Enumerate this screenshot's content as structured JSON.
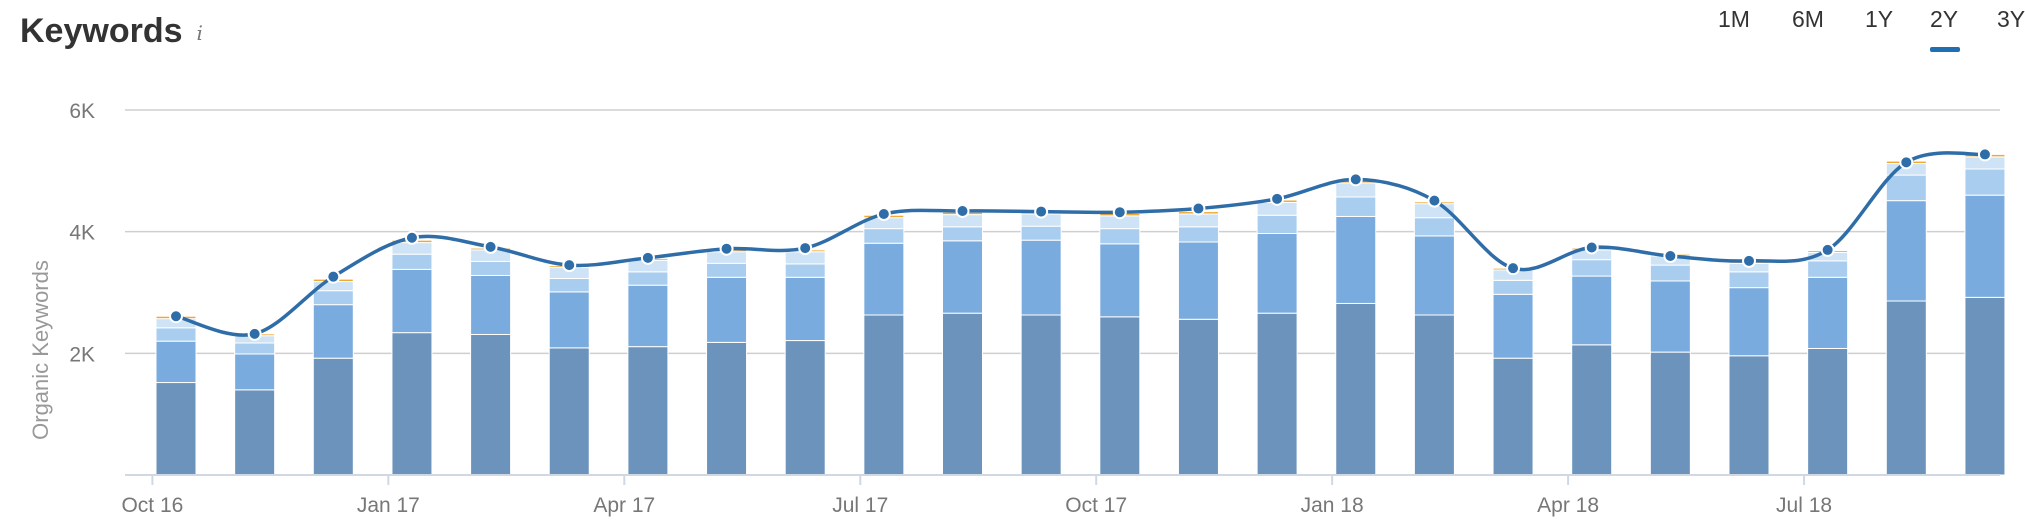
{
  "header": {
    "title": "Keywords",
    "info_icon_text": "i"
  },
  "range_selector": {
    "options": [
      "1M",
      "6M",
      "1Y",
      "2Y",
      "3Y"
    ],
    "selected": "2Y",
    "accent_color": "#1f6fb2"
  },
  "chart_data": {
    "type": "bar",
    "stacked": true,
    "ylabel": "Organic Keywords",
    "xlabel": "",
    "ylim": [
      0,
      6000
    ],
    "yticks": [
      {
        "value": 2000,
        "label": "2K"
      },
      {
        "value": 4000,
        "label": "4K"
      },
      {
        "value": 6000,
        "label": "6K"
      }
    ],
    "grid": true,
    "categories": [
      "Oct 16",
      "Nov 16",
      "Dec 16",
      "Jan 17",
      "Feb 17",
      "Mar 17",
      "Apr 17",
      "May 17",
      "Jun 17",
      "Jul 17",
      "Aug 17",
      "Sep 17",
      "Oct 17",
      "Nov 17",
      "Dec 17",
      "Jan 18",
      "Feb 18",
      "Mar 18",
      "Apr 18",
      "May 18",
      "Jun 18",
      "Jul 18",
      "Aug 18",
      "Sep 18"
    ],
    "xtick_labels": [
      {
        "index": 0,
        "label": "Oct 16"
      },
      {
        "index": 3,
        "label": "Jan 17"
      },
      {
        "index": 6,
        "label": "Apr 17"
      },
      {
        "index": 9,
        "label": "Jul 17"
      },
      {
        "index": 12,
        "label": "Oct 17"
      },
      {
        "index": 15,
        "label": "Jan 18"
      },
      {
        "index": 18,
        "label": "Apr 18"
      },
      {
        "index": 21,
        "label": "Jul 18"
      }
    ],
    "series": [
      {
        "color": "#6b93bb",
        "values": [
          1520,
          1400,
          1920,
          2340,
          2310,
          2090,
          2110,
          2180,
          2210,
          2630,
          2660,
          2630,
          2600,
          2560,
          2660,
          2820,
          2630,
          1920,
          2140,
          2020,
          1960,
          2080,
          2860,
          2920
        ]
      },
      {
        "color": "#7aabde",
        "values": [
          680,
          590,
          880,
          1040,
          970,
          920,
          1010,
          1070,
          1040,
          1180,
          1190,
          1230,
          1200,
          1270,
          1310,
          1430,
          1300,
          1050,
          1130,
          1170,
          1120,
          1170,
          1650,
          1680
        ]
      },
      {
        "color": "#a8cdef",
        "values": [
          220,
          180,
          230,
          250,
          230,
          220,
          220,
          230,
          220,
          240,
          230,
          230,
          250,
          250,
          300,
          320,
          300,
          230,
          270,
          260,
          260,
          270,
          420,
          430
        ]
      },
      {
        "color": "#cfe3f6",
        "values": [
          150,
          120,
          150,
          190,
          190,
          180,
          190,
          190,
          200,
          180,
          200,
          200,
          210,
          210,
          210,
          230,
          230,
          170,
          160,
          150,
          140,
          140,
          190,
          200
        ]
      },
      {
        "color": "#f0a830",
        "values": [
          40,
          30,
          40,
          40,
          30,
          30,
          30,
          30,
          30,
          40,
          40,
          40,
          40,
          40,
          40,
          40,
          30,
          30,
          30,
          30,
          30,
          30,
          40,
          40
        ]
      }
    ],
    "line": {
      "color": "#2f6da8",
      "values": [
        2610,
        2320,
        3260,
        3900,
        3750,
        3450,
        3570,
        3720,
        3730,
        4290,
        4340,
        4330,
        4320,
        4380,
        4540,
        4860,
        4510,
        3400,
        3740,
        3600,
        3520,
        3700,
        5140,
        5270
      ]
    }
  }
}
